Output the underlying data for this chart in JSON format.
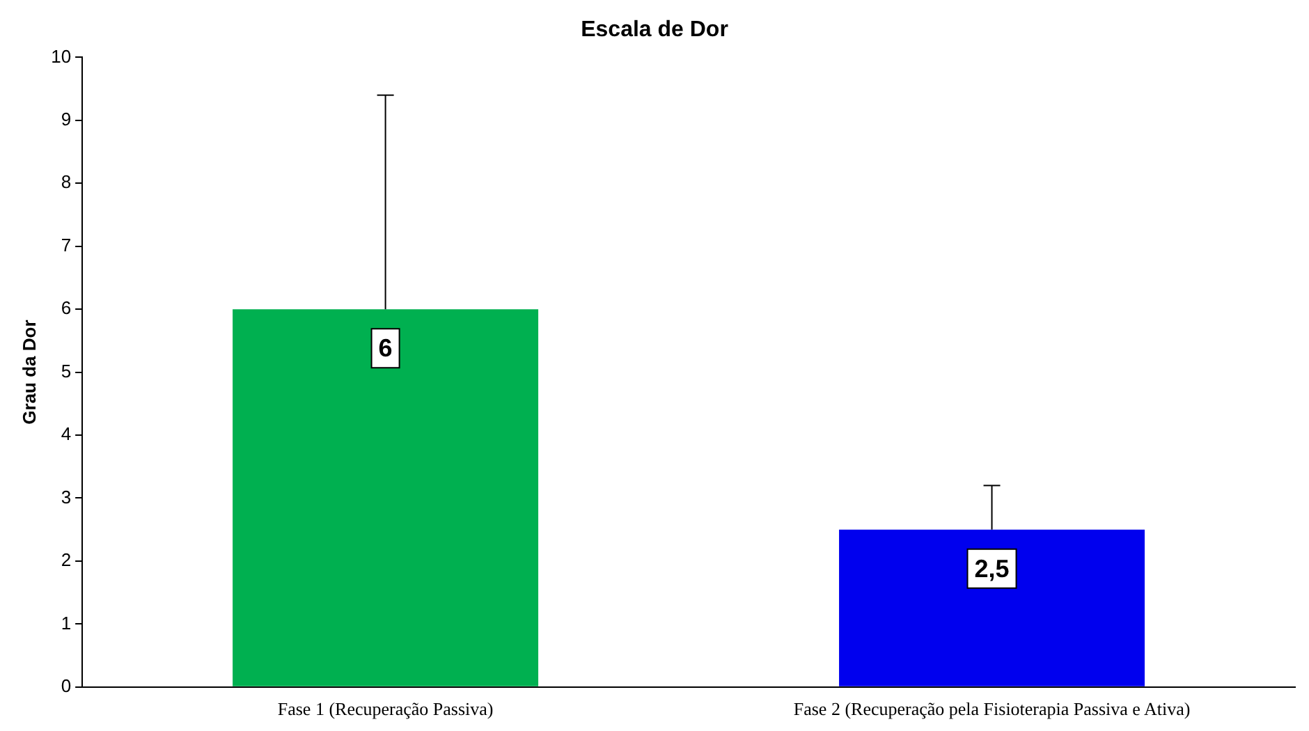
{
  "chart_data": {
    "type": "bar",
    "title": "Escala de Dor",
    "ylabel": "Grau da Dor",
    "categories": [
      "Fase 1 (Recuperação Passiva)",
      "Fase 2 (Recuperação pela Fisioterapia Passiva e Ativa)"
    ],
    "values": [
      6,
      2.5
    ],
    "colors": [
      "#00b050",
      "#0000ee"
    ],
    "errors": [
      [
        6,
        9.4
      ],
      [
        2.5,
        3.2
      ]
    ],
    "value_labels": [
      "6",
      "2,5"
    ],
    "ylim": [
      0,
      10
    ],
    "yticks": [
      0,
      1,
      2,
      3,
      4,
      5,
      6,
      7,
      8,
      9,
      10
    ],
    "grid": false,
    "legend": false
  }
}
